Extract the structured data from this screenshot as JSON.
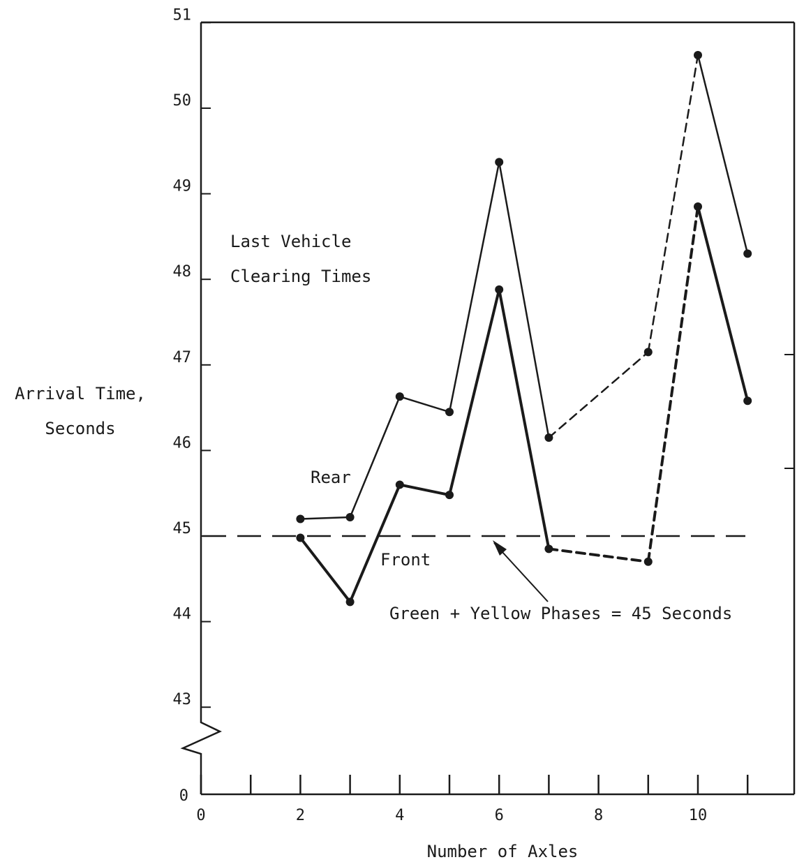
{
  "chart_data": {
    "type": "line",
    "xlabel": "Number of Axles",
    "ylabel_line1": "Arrival Time,",
    "ylabel_line2": "Seconds",
    "annotation_line1": "Last Vehicle",
    "annotation_line2": "Clearing Times",
    "threshold_label": "Green + Yellow Phases = 45 Seconds",
    "threshold_value": 45,
    "xlim": [
      0,
      11.9
    ],
    "ylim_display": [
      42.1,
      51
    ],
    "y_axis_break": true,
    "x_ticks": [
      0,
      1,
      2,
      3,
      4,
      5,
      6,
      7,
      8,
      9,
      10,
      11
    ],
    "x_tick_labels": [
      "0",
      "",
      "2",
      "",
      "4",
      "",
      "6",
      "",
      "8",
      "",
      "10",
      ""
    ],
    "y_ticks": [
      43,
      44,
      45,
      46,
      47,
      48,
      49,
      50,
      51
    ],
    "y_tick_labels": [
      "43",
      "44",
      "45",
      "46",
      "47",
      "48",
      "49",
      "50",
      "51"
    ],
    "y_origin_label": "0",
    "series": [
      {
        "name": "Rear",
        "points": [
          [
            2,
            45.2
          ],
          [
            3,
            45.22
          ],
          [
            4,
            46.63
          ],
          [
            5,
            46.45
          ],
          [
            6,
            49.37
          ],
          [
            7,
            46.15
          ],
          [
            9,
            47.15
          ],
          [
            10,
            50.62
          ],
          [
            11,
            48.3
          ]
        ],
        "dashed_after_x": 7
      },
      {
        "name": "Front",
        "points": [
          [
            2,
            44.98
          ],
          [
            3,
            44.23
          ],
          [
            4,
            45.6
          ],
          [
            5,
            45.48
          ],
          [
            6,
            47.88
          ],
          [
            7,
            44.85
          ],
          [
            9,
            44.7
          ],
          [
            10,
            48.85
          ],
          [
            11,
            46.58
          ]
        ],
        "dashed_after_x": 7
      }
    ]
  }
}
